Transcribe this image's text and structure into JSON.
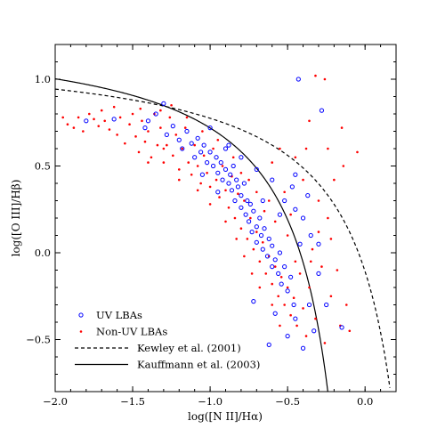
{
  "chart_data": {
    "type": "scatter",
    "title": "",
    "xlabel": "log([N II]/Hα)",
    "ylabel": "log([O III]/Hβ)",
    "xlim": [
      -2.0,
      0.2
    ],
    "ylim": [
      -0.8,
      1.2
    ],
    "xticks": [
      -2.0,
      -1.5,
      -1.0,
      -0.5,
      0.0
    ],
    "xtick_labels": [
      "−2.0",
      "−1.5",
      "−1.0",
      "−0.5",
      "0.0"
    ],
    "yticks": [
      -0.5,
      0.0,
      0.5,
      1.0
    ],
    "ytick_labels": [
      "−0.5",
      "0.0",
      "0.5",
      "1.0"
    ],
    "grid": false,
    "legend_placement": "bottom-left",
    "series": [
      {
        "name": "UV LBAs",
        "marker": "open-circle",
        "color": "#0000ff",
        "points": [
          [
            -1.8,
            0.76
          ],
          [
            -1.62,
            0.77
          ],
          [
            -1.42,
            0.72
          ],
          [
            -1.4,
            0.76
          ],
          [
            -1.35,
            0.8
          ],
          [
            -1.3,
            0.86
          ],
          [
            -1.28,
            0.68
          ],
          [
            -1.24,
            0.73
          ],
          [
            -1.2,
            0.65
          ],
          [
            -1.18,
            0.6
          ],
          [
            -1.15,
            0.7
          ],
          [
            -1.12,
            0.63
          ],
          [
            -1.1,
            0.55
          ],
          [
            -1.08,
            0.66
          ],
          [
            -1.06,
            0.58
          ],
          [
            -1.04,
            0.62
          ],
          [
            -1.02,
            0.52
          ],
          [
            -1.0,
            0.58
          ],
          [
            -0.98,
            0.5
          ],
          [
            -0.96,
            0.55
          ],
          [
            -0.95,
            0.46
          ],
          [
            -0.93,
            0.52
          ],
          [
            -0.92,
            0.42
          ],
          [
            -0.9,
            0.48
          ],
          [
            -0.88,
            0.4
          ],
          [
            -0.87,
            0.45
          ],
          [
            -0.86,
            0.36
          ],
          [
            -0.85,
            0.5
          ],
          [
            -0.84,
            0.3
          ],
          [
            -0.83,
            0.42
          ],
          [
            -0.82,
            0.38
          ],
          [
            -0.8,
            0.33
          ],
          [
            -0.8,
            0.26
          ],
          [
            -0.78,
            0.4
          ],
          [
            -0.77,
            0.22
          ],
          [
            -0.76,
            0.3
          ],
          [
            -0.75,
            0.18
          ],
          [
            -0.74,
            0.28
          ],
          [
            -0.73,
            0.12
          ],
          [
            -0.72,
            0.24
          ],
          [
            -0.7,
            0.15
          ],
          [
            -0.7,
            0.06
          ],
          [
            -0.68,
            0.2
          ],
          [
            -0.67,
            0.1
          ],
          [
            -0.66,
            0.02
          ],
          [
            -0.65,
            0.14
          ],
          [
            -0.63,
            -0.02
          ],
          [
            -0.62,
            0.08
          ],
          [
            -0.6,
            -0.08
          ],
          [
            -0.6,
            0.04
          ],
          [
            -0.58,
            -0.04
          ],
          [
            -0.56,
            -0.12
          ],
          [
            -0.55,
            0.0
          ],
          [
            -0.54,
            -0.18
          ],
          [
            -0.52,
            -0.08
          ],
          [
            -0.5,
            -0.22
          ],
          [
            -0.48,
            -0.14
          ],
          [
            -0.46,
            -0.3
          ],
          [
            -0.45,
            -0.38
          ],
          [
            -0.5,
            -0.48
          ],
          [
            -0.58,
            -0.35
          ],
          [
            -0.62,
            -0.53
          ],
          [
            -0.4,
            -0.55
          ],
          [
            -0.36,
            -0.3
          ],
          [
            -0.33,
            -0.45
          ],
          [
            -0.3,
            -0.12
          ],
          [
            -0.35,
            0.1
          ],
          [
            -0.4,
            0.2
          ],
          [
            -0.45,
            0.25
          ],
          [
            -0.52,
            0.3
          ],
          [
            -0.6,
            0.42
          ],
          [
            -0.7,
            0.48
          ],
          [
            -1.0,
            0.72
          ],
          [
            -0.9,
            0.6
          ],
          [
            -0.8,
            0.55
          ],
          [
            -0.47,
            0.38
          ],
          [
            -0.37,
            0.33
          ],
          [
            -0.3,
            0.05
          ],
          [
            -0.25,
            -0.3
          ],
          [
            -0.15,
            -0.43
          ],
          [
            -0.43,
            1.0
          ],
          [
            -0.28,
            0.82
          ],
          [
            -0.72,
            -0.28
          ],
          [
            -0.45,
            0.45
          ],
          [
            -0.95,
            0.35
          ],
          [
            -1.05,
            0.45
          ],
          [
            -0.88,
            0.62
          ],
          [
            -0.66,
            0.3
          ],
          [
            -0.55,
            0.22
          ],
          [
            -0.42,
            0.05
          ]
        ]
      },
      {
        "name": "Non-UV LBAs",
        "marker": "dot",
        "color": "#ff0000",
        "points": [
          [
            -1.95,
            0.78
          ],
          [
            -1.92,
            0.74
          ],
          [
            -1.88,
            0.72
          ],
          [
            -1.85,
            0.78
          ],
          [
            -1.82,
            0.7
          ],
          [
            -1.78,
            0.8
          ],
          [
            -1.75,
            0.77
          ],
          [
            -1.72,
            0.73
          ],
          [
            -1.7,
            0.82
          ],
          [
            -1.68,
            0.76
          ],
          [
            -1.65,
            0.71
          ],
          [
            -1.62,
            0.84
          ],
          [
            -1.6,
            0.68
          ],
          [
            -1.58,
            0.78
          ],
          [
            -1.55,
            0.63
          ],
          [
            -1.52,
            0.74
          ],
          [
            -1.5,
            0.8
          ],
          [
            -1.48,
            0.67
          ],
          [
            -1.46,
            0.58
          ],
          [
            -1.44,
            0.76
          ],
          [
            -1.42,
            0.64
          ],
          [
            -1.4,
            0.7
          ],
          [
            -1.38,
            0.55
          ],
          [
            -1.36,
            0.8
          ],
          [
            -1.34,
            0.62
          ],
          [
            -1.32,
            0.72
          ],
          [
            -1.3,
            0.52
          ],
          [
            -1.28,
            0.62
          ],
          [
            -1.26,
            0.78
          ],
          [
            -1.24,
            0.56
          ],
          [
            -1.22,
            0.68
          ],
          [
            -1.2,
            0.48
          ],
          [
            -1.18,
            0.6
          ],
          [
            -1.16,
            0.72
          ],
          [
            -1.14,
            0.52
          ],
          [
            -1.12,
            0.45
          ],
          [
            -1.1,
            0.62
          ],
          [
            -1.08,
            0.5
          ],
          [
            -1.06,
            0.4
          ],
          [
            -1.04,
            0.56
          ],
          [
            -1.02,
            0.46
          ],
          [
            -1.0,
            0.38
          ],
          [
            -0.98,
            0.6
          ],
          [
            -0.96,
            0.42
          ],
          [
            -0.94,
            0.32
          ],
          [
            -0.92,
            0.5
          ],
          [
            -0.9,
            0.36
          ],
          [
            -0.88,
            0.26
          ],
          [
            -0.86,
            0.44
          ],
          [
            -0.84,
            0.2
          ],
          [
            -0.82,
            0.34
          ],
          [
            -0.8,
            0.14
          ],
          [
            -0.78,
            0.3
          ],
          [
            -0.76,
            0.08
          ],
          [
            -0.74,
            0.2
          ],
          [
            -0.72,
            0.02
          ],
          [
            -0.7,
            0.12
          ],
          [
            -0.68,
            -0.05
          ],
          [
            -0.66,
            0.06
          ],
          [
            -0.64,
            -0.12
          ],
          [
            -0.62,
            -0.02
          ],
          [
            -0.6,
            -0.18
          ],
          [
            -0.58,
            -0.08
          ],
          [
            -0.56,
            -0.25
          ],
          [
            -0.54,
            -0.14
          ],
          [
            -0.52,
            -0.3
          ],
          [
            -0.5,
            -0.2
          ],
          [
            -0.48,
            -0.36
          ],
          [
            -0.46,
            -0.26
          ],
          [
            -0.44,
            -0.42
          ],
          [
            -0.42,
            -0.12
          ],
          [
            -0.4,
            -0.32
          ],
          [
            -0.38,
            -0.48
          ],
          [
            -0.36,
            -0.2
          ],
          [
            -0.34,
            0.02
          ],
          [
            -0.32,
            -0.38
          ],
          [
            -0.3,
            0.12
          ],
          [
            -0.28,
            -0.08
          ],
          [
            -0.26,
            -0.52
          ],
          [
            -0.24,
            0.2
          ],
          [
            -0.22,
            -0.25
          ],
          [
            -0.2,
            0.42
          ],
          [
            -0.18,
            -0.1
          ],
          [
            -0.16,
            -0.42
          ],
          [
            -0.14,
            0.5
          ],
          [
            -0.12,
            -0.3
          ],
          [
            -0.1,
            -0.45
          ],
          [
            -0.05,
            0.58
          ],
          [
            -0.32,
            1.02
          ],
          [
            -0.26,
            1.0
          ],
          [
            -0.36,
            0.76
          ],
          [
            -0.24,
            0.6
          ],
          [
            -0.55,
            0.6
          ],
          [
            -0.45,
            0.55
          ],
          [
            -0.62,
            0.3
          ],
          [
            -0.52,
            0.35
          ],
          [
            -0.58,
            0.18
          ],
          [
            -0.5,
            0.1
          ],
          [
            -0.48,
            0.22
          ],
          [
            -0.65,
            0.24
          ],
          [
            -0.75,
            0.42
          ],
          [
            -0.85,
            0.55
          ],
          [
            -0.95,
            0.65
          ],
          [
            -1.05,
            0.7
          ],
          [
            -1.15,
            0.78
          ],
          [
            -1.25,
            0.85
          ],
          [
            -1.32,
            0.82
          ],
          [
            -1.45,
            0.83
          ],
          [
            -0.7,
            0.35
          ],
          [
            -0.8,
            0.46
          ],
          [
            -0.6,
            0.52
          ],
          [
            -0.4,
            0.42
          ],
          [
            -0.3,
            0.3
          ],
          [
            -0.22,
            0.08
          ],
          [
            -0.15,
            0.72
          ],
          [
            -0.38,
            0.6
          ],
          [
            -0.55,
            -0.42
          ],
          [
            -0.6,
            -0.3
          ],
          [
            -0.68,
            -0.2
          ],
          [
            -0.73,
            -0.12
          ],
          [
            -0.78,
            -0.02
          ],
          [
            -0.83,
            0.08
          ],
          [
            -0.9,
            0.18
          ],
          [
            -1.0,
            0.28
          ],
          [
            -1.08,
            0.36
          ],
          [
            -1.2,
            0.42
          ],
          [
            -1.3,
            0.6
          ],
          [
            -1.4,
            0.52
          ],
          [
            -0.45,
            -0.05
          ],
          [
            -0.35,
            -0.05
          ]
        ]
      },
      {
        "name": "Kewley et al. (2001)",
        "line_style": "dashed",
        "color": "#000000",
        "function": "0.61/(x-0.47)+1.19",
        "x_range": [
          -2.0,
          0.16
        ]
      },
      {
        "name": "Kauffmann et al. (2003)",
        "line_style": "solid",
        "color": "#000000",
        "function": "0.61/(x-0.05)+1.3",
        "x_range": [
          -2.0,
          -0.24
        ]
      }
    ]
  }
}
